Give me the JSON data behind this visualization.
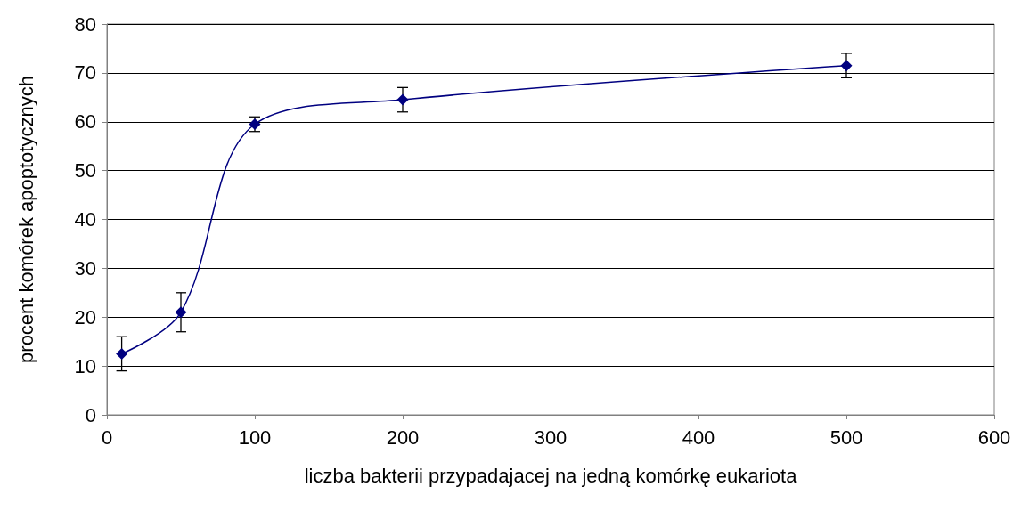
{
  "chart_data": {
    "type": "line",
    "xlabel": "liczba bakterii przypadajacej na jedną komórkę eukariota",
    "ylabel": "procent komórek apoptotycznych",
    "x": [
      10,
      50,
      100,
      200,
      500
    ],
    "series": [
      {
        "color": "#000080",
        "values": [
          12.5,
          21,
          59.5,
          64.5,
          71.5
        ],
        "errors": [
          3.5,
          4,
          1.5,
          2.5,
          2.5
        ]
      }
    ],
    "xlim": [
      0,
      600
    ],
    "xticks": [
      0,
      100,
      200,
      300,
      400,
      500,
      600
    ],
    "ylim": [
      0,
      80
    ],
    "yticks": [
      0,
      10,
      20,
      30,
      40,
      50,
      60,
      70,
      80
    ],
    "grid": "y",
    "marker": "diamond",
    "line_style": "solid"
  }
}
